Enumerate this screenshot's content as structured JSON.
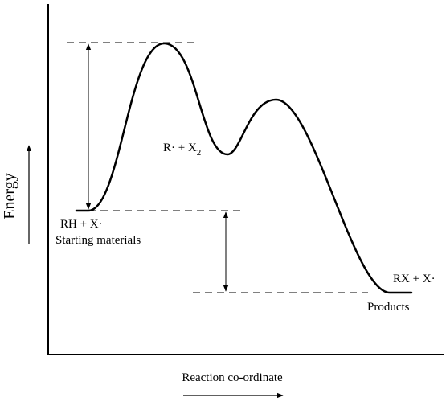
{
  "diagram": {
    "axis_labels": {
      "y": "Energy",
      "x": "Reaction co-ordinate"
    },
    "labels": {
      "start_species": "RH + X·",
      "start_caption": "Starting materials",
      "intermediate_main": "R· + X",
      "intermediate_subscript": "2",
      "product_species": "RX + X·",
      "product_caption": "Products"
    },
    "colors": {
      "ink": "#000000",
      "background": "#ffffff"
    }
  }
}
